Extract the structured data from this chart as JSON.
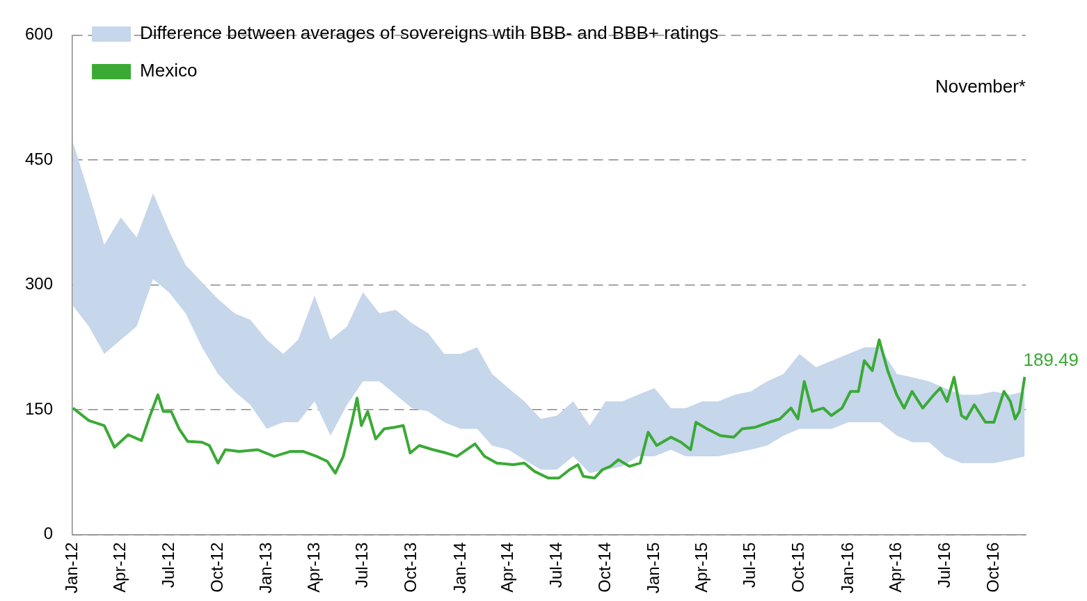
{
  "chart_data": {
    "type": "line",
    "legend": "top left",
    "grid": "y",
    "ylim": [
      0,
      600
    ],
    "yticks": [
      0,
      150,
      300,
      450,
      600
    ],
    "xlim": [
      "2012-01-01",
      "2016-11-30"
    ],
    "xticks": [
      {
        "value": "2012-01-01",
        "label": "Jan-12"
      },
      {
        "value": "2012-04-01",
        "label": "Apr-12"
      },
      {
        "value": "2012-07-01",
        "label": "Jul-12"
      },
      {
        "value": "2012-10-01",
        "label": "Oct-12"
      },
      {
        "value": "2013-01-01",
        "label": "Jan-13"
      },
      {
        "value": "2013-04-01",
        "label": "Apr-13"
      },
      {
        "value": "2013-07-01",
        "label": "Jul-13"
      },
      {
        "value": "2013-10-01",
        "label": "Oct-13"
      },
      {
        "value": "2014-01-01",
        "label": "Jan-14"
      },
      {
        "value": "2014-04-01",
        "label": "Apr-14"
      },
      {
        "value": "2014-07-01",
        "label": "Jul-14"
      },
      {
        "value": "2014-10-01",
        "label": "Oct-14"
      },
      {
        "value": "2015-01-01",
        "label": "Jan-15"
      },
      {
        "value": "2015-04-01",
        "label": "Apr-15"
      },
      {
        "value": "2015-07-01",
        "label": "Jul-15"
      },
      {
        "value": "2015-10-01",
        "label": "Oct-15"
      },
      {
        "value": "2016-01-01",
        "label": "Jan-16"
      },
      {
        "value": "2016-04-01",
        "label": "Apr-16"
      },
      {
        "value": "2016-07-01",
        "label": "Jul-16"
      },
      {
        "value": "2016-10-01",
        "label": "Oct-16"
      }
    ],
    "annotations": [
      "November*",
      {
        "text": "189.49",
        "x": "2016-11-28",
        "y": 189.49
      }
    ],
    "series": [
      {
        "name": "Difference between averages of sovereigns wtih BBB- and BBB+ ratings",
        "type": "area",
        "color": "#c6d6eb",
        "x": [
          "2012-01-02",
          "2012-02-01",
          "2012-03-01",
          "2012-04-01",
          "2012-05-01",
          "2012-06-01",
          "2012-07-01",
          "2012-08-01",
          "2012-09-01",
          "2012-10-01",
          "2012-11-01",
          "2012-12-01",
          "2013-01-01",
          "2013-02-01",
          "2013-03-01",
          "2013-04-01",
          "2013-05-01",
          "2013-06-01",
          "2013-07-01",
          "2013-08-01",
          "2013-09-01",
          "2013-10-01",
          "2013-11-01",
          "2013-12-01",
          "2014-01-01",
          "2014-02-01",
          "2014-03-01",
          "2014-04-01",
          "2014-05-01",
          "2014-06-01",
          "2014-07-01",
          "2014-08-01",
          "2014-09-01",
          "2014-10-01",
          "2014-11-01",
          "2014-12-01",
          "2015-01-01",
          "2015-02-01",
          "2015-03-01",
          "2015-04-01",
          "2015-05-01",
          "2015-06-01",
          "2015-07-01",
          "2015-08-01",
          "2015-09-01",
          "2015-10-01",
          "2015-11-01",
          "2015-12-01",
          "2016-01-01",
          "2016-02-01",
          "2016-03-01",
          "2016-04-01",
          "2016-05-01",
          "2016-06-01",
          "2016-07-01",
          "2016-08-01",
          "2016-09-01",
          "2016-10-01",
          "2016-11-01",
          "2016-11-28"
        ],
        "values": [
          null,
          null,
          null,
          null,
          null,
          null,
          null,
          null,
          null,
          null,
          null,
          null,
          null,
          null,
          null,
          null,
          null,
          null,
          null,
          null,
          null,
          null,
          null,
          null,
          null,
          null,
          null,
          null,
          null,
          null,
          null,
          null,
          null,
          null,
          null,
          null,
          null,
          null,
          null,
          null,
          null,
          null,
          null,
          null,
          null,
          null,
          null,
          null,
          null,
          null,
          null,
          null,
          null,
          null,
          null,
          null,
          null,
          null,
          null,
          null
        ],
        "upper": [
          471,
          410,
          348,
          381,
          357,
          410,
          365,
          324,
          303,
          283,
          266,
          258,
          234,
          217,
          234,
          287,
          234,
          250,
          291,
          266,
          270,
          254,
          242,
          217,
          217,
          225,
          193,
          176,
          160,
          139,
          143,
          160,
          131,
          160,
          160,
          168,
          176,
          152,
          152,
          160,
          160,
          168,
          172,
          184,
          193,
          217,
          201,
          209,
          217,
          225,
          225,
          193,
          189,
          184,
          176,
          168,
          168,
          172,
          168,
          172
        ],
        "lower": [
          275,
          250,
          217,
          234,
          250,
          307,
          291,
          266,
          225,
          193,
          172,
          156,
          127,
          135,
          135,
          160,
          119,
          156,
          184,
          184,
          168,
          152,
          148,
          135,
          127,
          127,
          107,
          102,
          90,
          78,
          78,
          94,
          74,
          78,
          82,
          94,
          94,
          102,
          94,
          94,
          94,
          98,
          102,
          107,
          119,
          127,
          127,
          127,
          135,
          135,
          135,
          119,
          111,
          111,
          94,
          86,
          86,
          86,
          90,
          94
        ]
      },
      {
        "name": "Mexico",
        "type": "line",
        "color": "#3aaa35",
        "x": [
          "2012-01-02",
          "2012-02-01",
          "2012-03-01",
          "2012-03-20",
          "2012-04-15",
          "2012-05-10",
          "2012-05-25",
          "2012-06-10",
          "2012-06-20",
          "2012-07-05",
          "2012-07-20",
          "2012-08-05",
          "2012-09-01",
          "2012-09-15",
          "2012-10-01",
          "2012-10-15",
          "2012-11-10",
          "2012-12-15",
          "2013-01-15",
          "2013-02-15",
          "2013-03-10",
          "2013-04-05",
          "2013-04-25",
          "2013-05-10",
          "2013-05-25",
          "2013-06-10",
          "2013-06-20",
          "2013-06-28",
          "2013-07-10",
          "2013-07-25",
          "2013-08-10",
          "2013-08-30",
          "2013-09-15",
          "2013-09-28",
          "2013-10-15",
          "2013-11-10",
          "2013-12-05",
          "2013-12-25",
          "2014-01-10",
          "2014-01-28",
          "2014-02-15",
          "2014-03-10",
          "2014-04-10",
          "2014-05-01",
          "2014-05-20",
          "2014-06-15",
          "2014-07-05",
          "2014-07-25",
          "2014-08-10",
          "2014-08-20",
          "2014-09-10",
          "2014-09-25",
          "2014-10-10",
          "2014-10-25",
          "2014-11-15",
          "2014-12-05",
          "2014-12-20",
          "2015-01-05",
          "2015-02-01",
          "2015-02-20",
          "2015-03-10",
          "2015-03-20",
          "2015-04-10",
          "2015-05-05",
          "2015-05-30",
          "2015-06-15",
          "2015-07-10",
          "2015-08-05",
          "2015-08-25",
          "2015-09-15",
          "2015-09-28",
          "2015-10-10",
          "2015-10-25",
          "2015-11-15",
          "2015-11-30",
          "2015-12-20",
          "2016-01-05",
          "2016-01-20",
          "2016-01-31",
          "2016-02-15",
          "2016-02-28",
          "2016-03-15",
          "2016-04-01",
          "2016-04-15",
          "2016-04-30",
          "2016-05-20",
          "2016-06-10",
          "2016-06-22",
          "2016-07-05",
          "2016-07-18",
          "2016-08-01",
          "2016-08-10",
          "2016-08-25",
          "2016-09-15",
          "2016-10-01",
          "2016-10-20",
          "2016-11-01",
          "2016-11-10",
          "2016-11-18",
          "2016-11-28"
        ],
        "values": [
          152,
          137,
          131,
          105,
          120,
          113,
          141,
          168,
          148,
          148,
          127,
          112,
          111,
          107,
          86,
          102,
          100,
          102,
          94,
          100,
          100,
          94,
          88,
          74,
          94,
          135,
          164,
          131,
          148,
          115,
          127,
          129,
          131,
          98,
          107,
          102,
          98,
          94,
          101,
          109,
          94,
          86,
          84,
          86,
          76,
          68,
          68,
          78,
          84,
          70,
          68,
          78,
          82,
          90,
          82,
          86,
          123,
          107,
          117,
          111,
          102,
          135,
          127,
          119,
          117,
          127,
          129,
          135,
          139,
          152,
          139,
          184,
          148,
          152,
          143,
          152,
          172,
          172,
          209,
          197,
          234,
          197,
          168,
          152,
          172,
          152,
          168,
          176,
          160,
          189,
          143,
          139,
          156,
          135,
          135,
          172,
          160,
          139,
          148,
          189.49
        ]
      }
    ]
  }
}
